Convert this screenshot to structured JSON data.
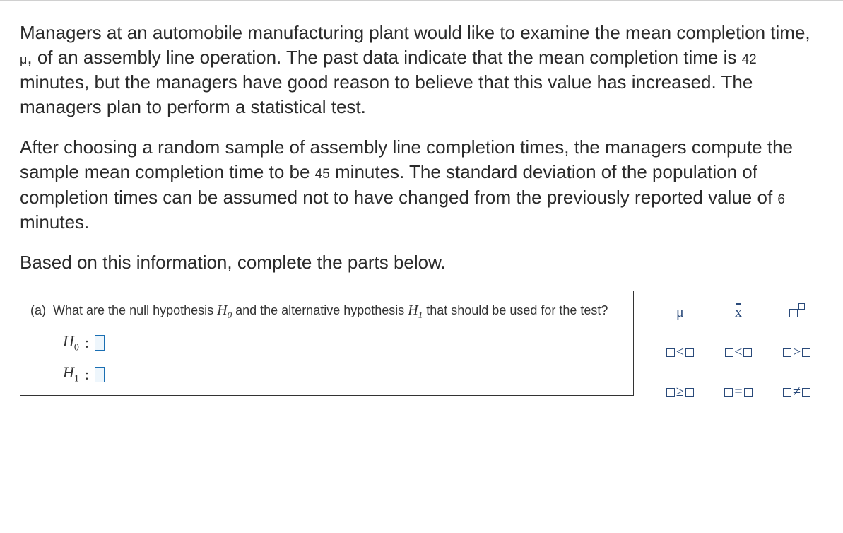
{
  "paragraph1_a": "Managers at an automobile manufacturing plant would like to examine the mean completion time, ",
  "mu_symbol": "μ",
  "paragraph1_b": ", of an assembly line operation. The past data indicate that the mean completion time is ",
  "val_42": "42",
  "paragraph1_c": " minutes, but the managers have good reason to believe that this value has increased. The managers plan to perform a statistical test.",
  "paragraph2_a": "After choosing a random sample of assembly line completion times, the managers compute the sample mean completion time to be ",
  "val_45": "45",
  "paragraph2_b": " minutes. The standard deviation of the population of completion times can be assumed not to have changed from the previously reported value of ",
  "val_6": "6",
  "paragraph2_c": " minutes.",
  "paragraph3": "Based on this information, complete the parts below.",
  "part_a_label": "(a)",
  "part_a_q_1": "What are the null hypothesis ",
  "H0_sym": "H",
  "H0_sub": "0",
  "part_a_q_2": " and the alternative hypothesis ",
  "H1_sym": "H",
  "H1_sub": "1",
  "part_a_q_3": " that should be used for the test?",
  "h0_label_H": "H",
  "h0_label_sub": "0",
  "h1_label_H": "H",
  "h1_label_sub": "1",
  "colon": ":",
  "pal": {
    "mu": "μ",
    "x": "x",
    "lt": "<",
    "le": "≤",
    "gt": ">",
    "ge": "≥",
    "eq": "=",
    "ne": "≠"
  }
}
